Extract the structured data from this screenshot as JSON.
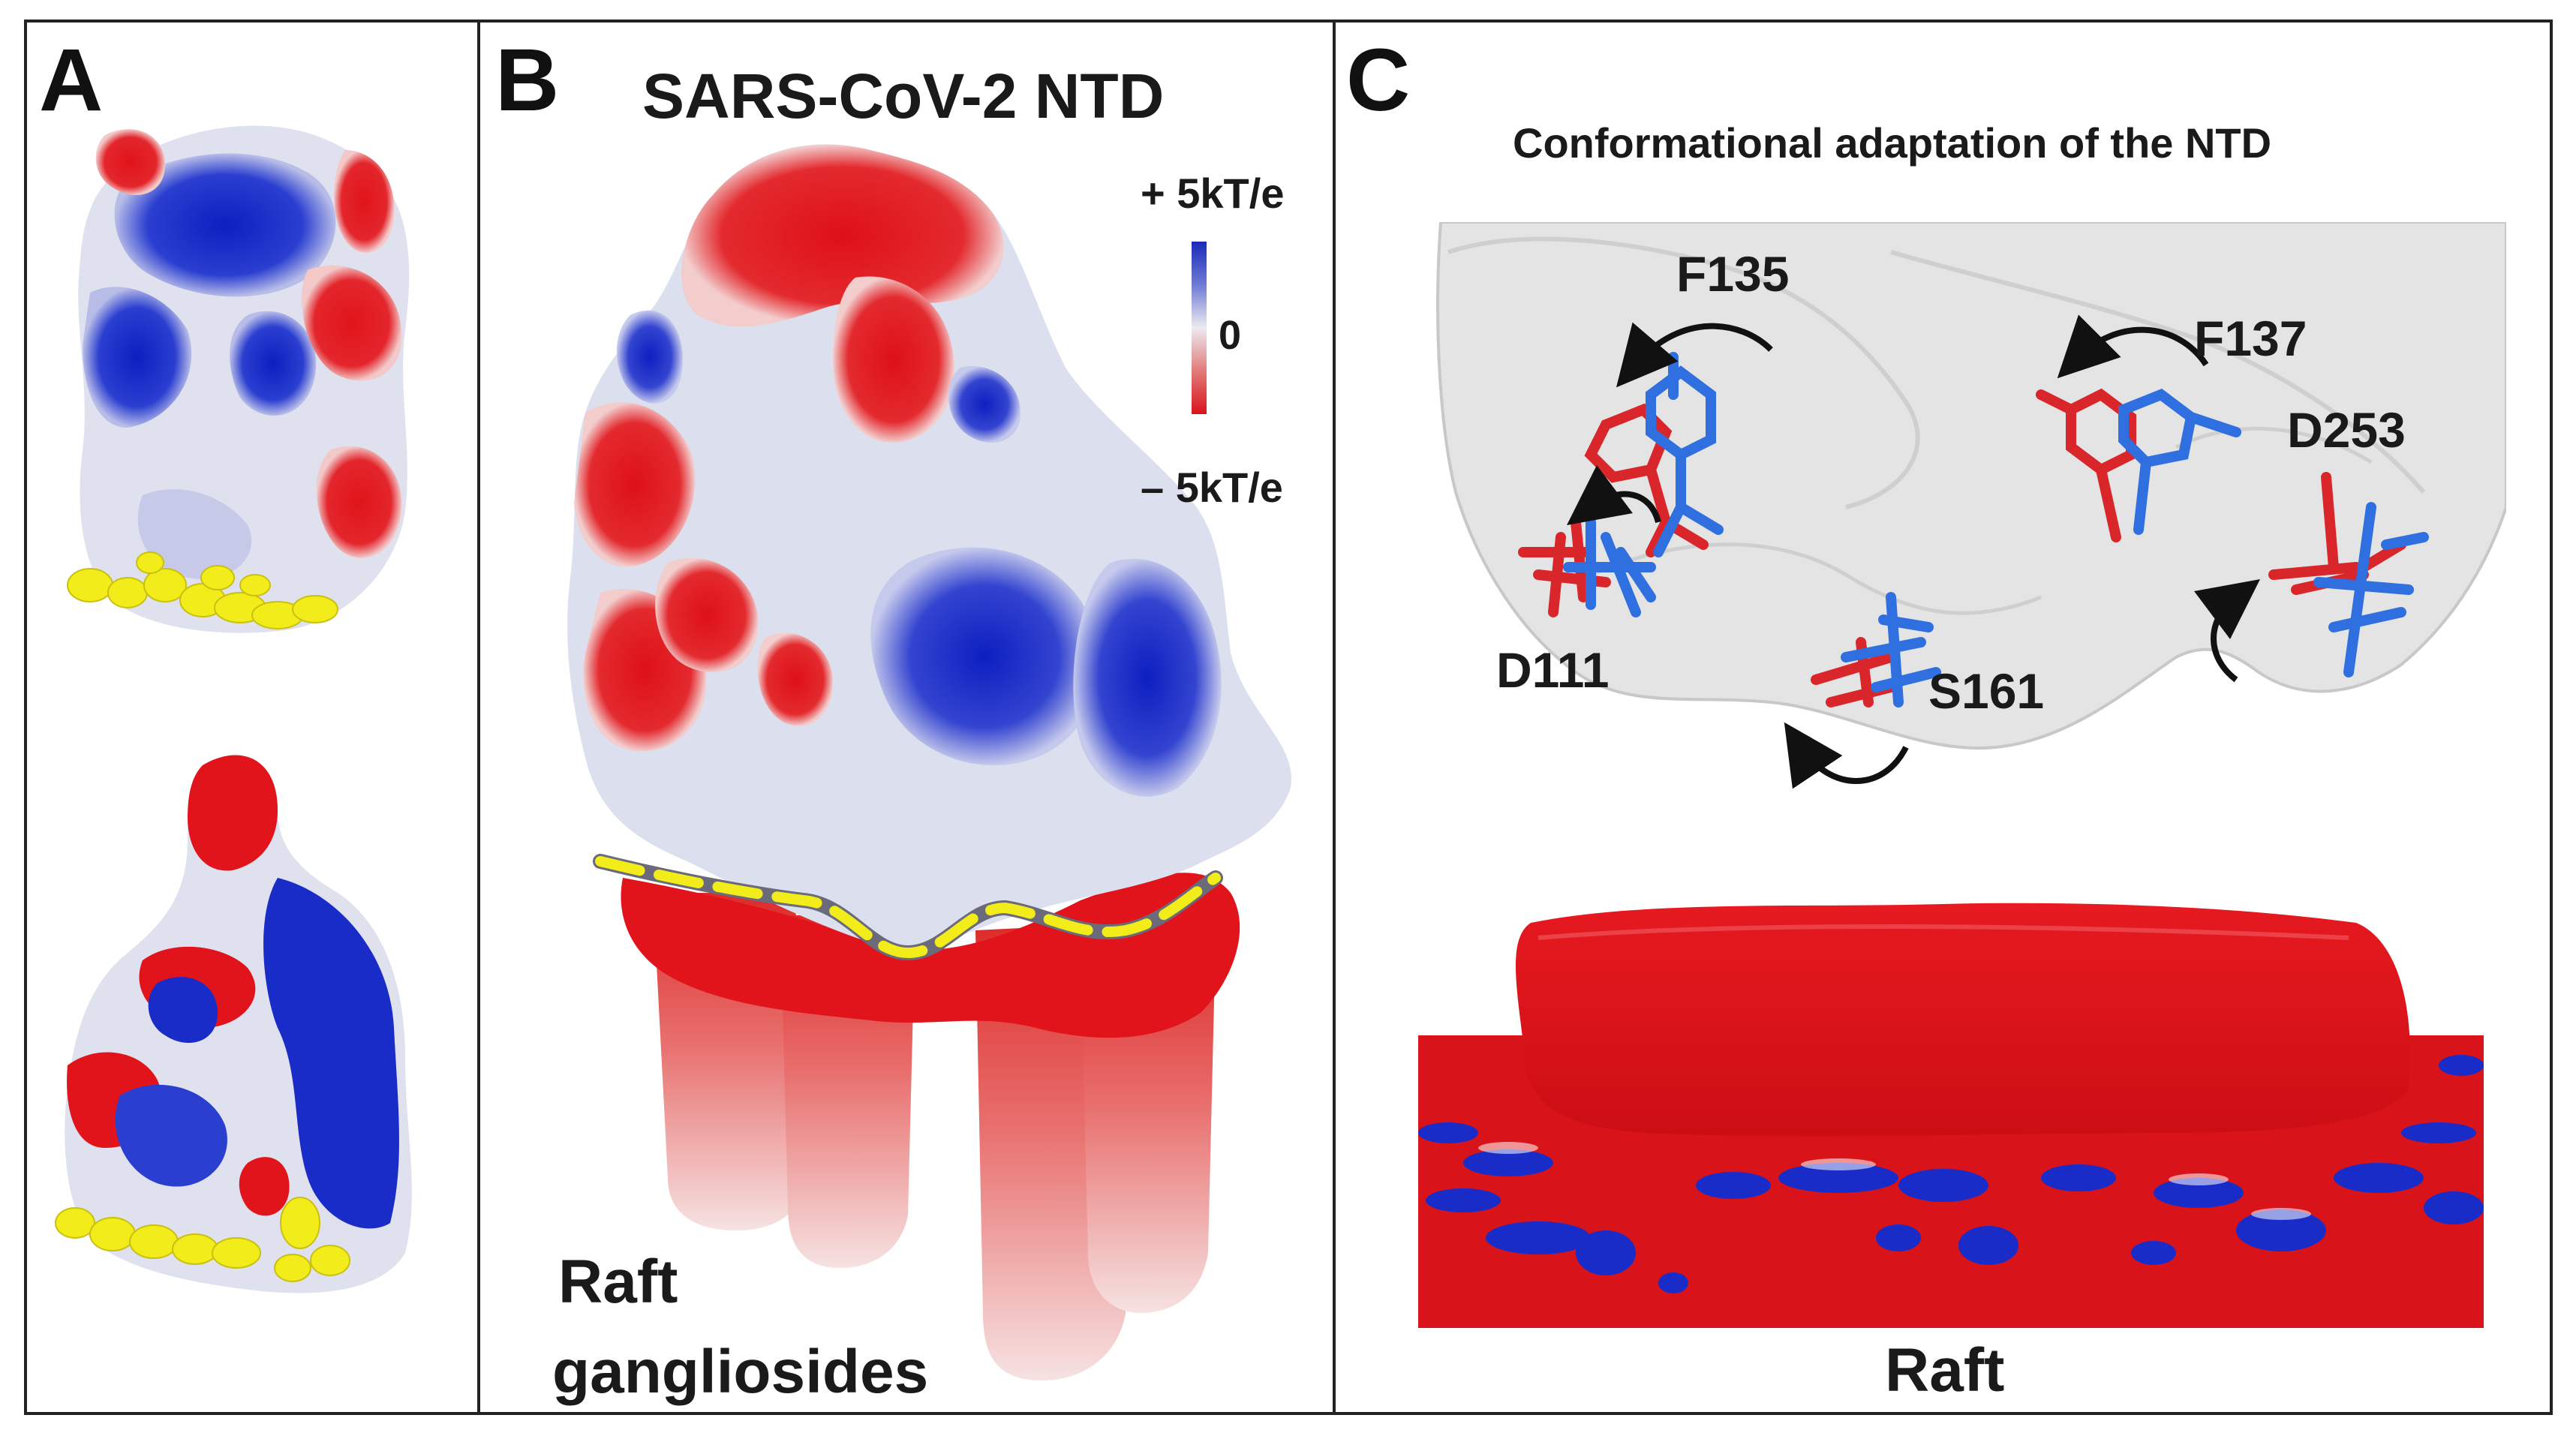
{
  "panels": {
    "a": {
      "letter": "A"
    },
    "b": {
      "letter": "B",
      "title": "SARS-CoV-2 NTD",
      "colorbar": {
        "top_label": "+ 5kT/e",
        "mid_label": "0",
        "bottom_label": "– 5kT/e"
      },
      "raft_label_line1": "Raft",
      "raft_label_line2": "gangliosides"
    },
    "c": {
      "letter": "C",
      "title": "Conformational adaptation of the NTD",
      "residues": [
        "F135",
        "F137",
        "D253",
        "D111",
        "S161"
      ],
      "raft_label": "Raft"
    }
  },
  "colors": {
    "positive": "#1428c8",
    "neutral": "#e8e8ee",
    "negative": "#e0141a",
    "ganglioside_contact": "#f2ec1a",
    "state_1": "#d8262a",
    "state_2": "#2f6fe0"
  }
}
